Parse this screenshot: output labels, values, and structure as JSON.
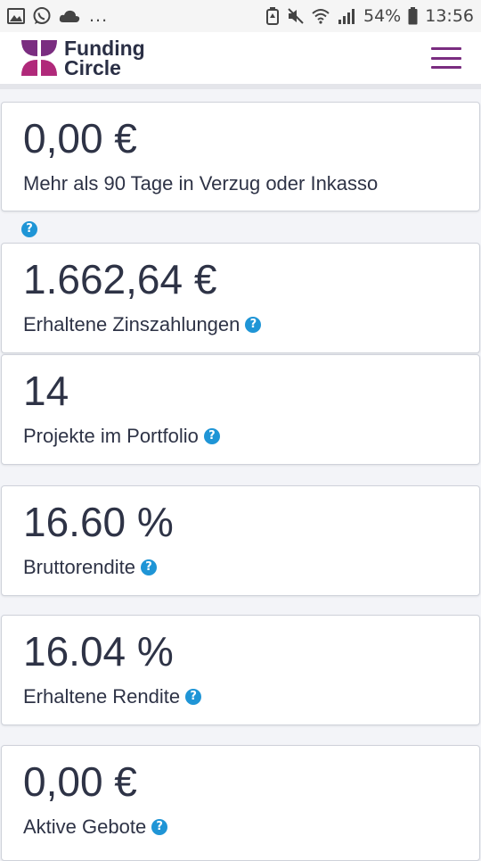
{
  "statusbar": {
    "dots": "...",
    "battery_percent": "54%",
    "time": "13:56",
    "icons": [
      "image-icon",
      "whatsapp-icon",
      "cloud-icon",
      "battery-saver-icon",
      "mute-icon",
      "wifi-icon",
      "signal-icon",
      "battery-icon"
    ]
  },
  "header": {
    "brand_line1": "Funding",
    "brand_line2": "Circle",
    "brand_color": "#7a2d80",
    "menu_icon": "hamburger-menu-icon"
  },
  "cards": [
    {
      "value": "0,00 €",
      "label": "Mehr als 90 Tage in Verzug oder Inkasso",
      "help": false
    },
    {
      "value": "1.662,64 €",
      "label": "Erhaltene Zinszahlungen",
      "help": true
    },
    {
      "value": "14",
      "label": "Projekte im Portfolio",
      "help": true
    },
    {
      "value": "16.60 %",
      "label": "Bruttorendite",
      "help": true
    },
    {
      "value": "16.04 %",
      "label": "Erhaltene Rendite",
      "help": true
    },
    {
      "value": "0,00 €",
      "label": "Aktive Gebote",
      "help": true
    }
  ],
  "help_glyph": "?",
  "colors": {
    "accent": "#1f95d6",
    "text": "#2e3346",
    "brand": "#7a2d80"
  }
}
